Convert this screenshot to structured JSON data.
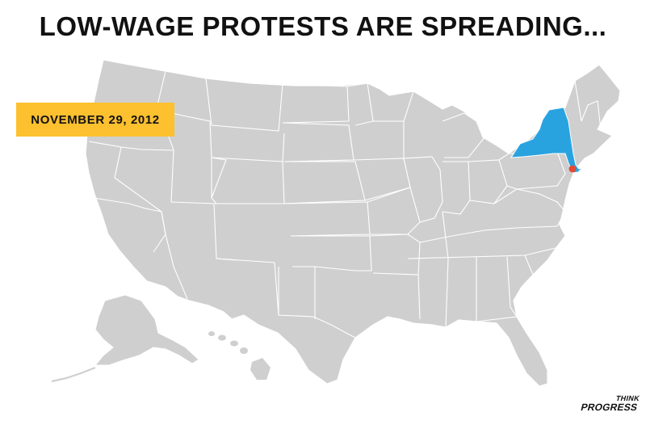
{
  "title": "LOW-WAGE PROTESTS ARE SPREADING...",
  "date_badge": "NOVEMBER 29, 2012",
  "logo": {
    "line1": "THINK",
    "line2": "PROGRESS"
  },
  "map": {
    "highlighted_states": [
      "New York"
    ],
    "highlighted_city": "New York City",
    "colors": {
      "land": "#cfcfcf",
      "border": "#ffffff",
      "highlight": "#29a3e0",
      "city_marker": "#e64a36",
      "badge": "#fdc02f",
      "text": "#111111"
    }
  }
}
